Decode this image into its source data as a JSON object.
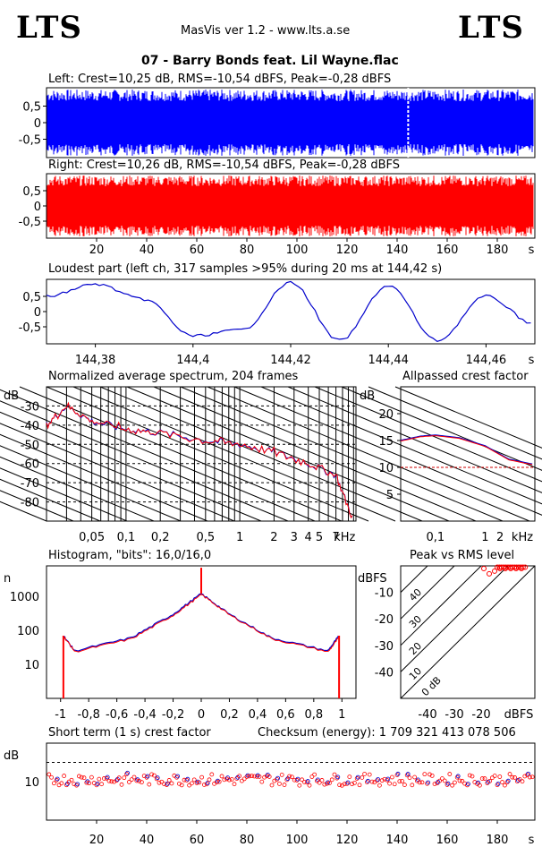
{
  "header": {
    "logo_left": "LTS",
    "logo_right": "LTS",
    "app_line": "MasVis ver 1.2 - www.lts.a.se",
    "track_title": "07 - Barry Bonds feat. Lil Wayne.flac"
  },
  "left_channel": {
    "title": "Left: Crest=10,25 dB, RMS=-10,54 dBFS, Peak=-0,28 dBFS",
    "color": "#0000ff",
    "y_ticks": [
      "0,5",
      "0",
      "-0,5"
    ],
    "marker_time_s": 144.42
  },
  "right_channel": {
    "title": "Right: Crest=10,26 dB, RMS=-10,54 dBFS, Peak=-0,28 dBFS",
    "color": "#ff0000",
    "y_ticks": [
      "0,5",
      "0",
      "-0,5"
    ],
    "x_ticks": [
      "20",
      "40",
      "60",
      "80",
      "100",
      "120",
      "140",
      "160",
      "180",
      "s"
    ]
  },
  "loudest": {
    "title": "Loudest part (left  ch, 317 samples >95% during 20 ms at 144,42 s)",
    "y_ticks": [
      "0,5",
      "0",
      "-0,5"
    ],
    "x_ticks": [
      "144,38",
      "144,4",
      "144,42",
      "144,44",
      "144,46",
      "s"
    ]
  },
  "spectrum": {
    "title": "Normalized average spectrum, 204 frames",
    "y_unit": "dB",
    "y_ticks": [
      "-30",
      "-40",
      "-50",
      "-60",
      "-70",
      "-80"
    ],
    "x_ticks": [
      "0,05",
      "0,1",
      "0,2",
      "0,5",
      "1",
      "2",
      "3",
      "4",
      "5",
      "7",
      "kHz"
    ]
  },
  "crest": {
    "title": "Allpassed crest factor",
    "y_unit": "dB",
    "y_ticks": [
      "20",
      "15",
      "10",
      "5"
    ],
    "x_ticks": [
      "0,1",
      "1",
      "2",
      "kHz"
    ]
  },
  "histogram": {
    "title": "Histogram, \"bits\": 16,0/16,0",
    "y_unit": "n",
    "y_ticks": [
      "1000",
      "100",
      "10"
    ],
    "x_ticks": [
      "-1",
      "-0,8",
      "-0,6",
      "-0,4",
      "-0,2",
      "0",
      "0,2",
      "0,4",
      "0,6",
      "0,8",
      "1"
    ]
  },
  "pvr": {
    "title": "Peak vs RMS level",
    "y_unit": "dBFS",
    "y_ticks": [
      "-10",
      "-20",
      "-30",
      "-40"
    ],
    "x_ticks": [
      "-40",
      "-30",
      "-20",
      "dBFS"
    ],
    "diag_labels": [
      "40",
      "30",
      "20",
      "10",
      "0 dB"
    ]
  },
  "short_crest": {
    "title": "Short term (1 s) crest factor",
    "checksum": "Checksum (energy):  1 709 321 413 078 506",
    "y_unit": "dB",
    "y_ticks": [
      "10"
    ],
    "x_ticks": [
      "20",
      "40",
      "60",
      "80",
      "100",
      "120",
      "140",
      "160",
      "180",
      "s"
    ]
  },
  "chart_data": [
    {
      "type": "area",
      "name": "left_waveform",
      "x_range": [
        0,
        195
      ],
      "ylim": [
        -1,
        1
      ],
      "amplitude_envelope": 0.95
    },
    {
      "type": "area",
      "name": "right_waveform",
      "x_range": [
        0,
        195
      ],
      "ylim": [
        -1,
        1
      ],
      "amplitude_envelope": 0.95
    },
    {
      "type": "line",
      "name": "loudest_part",
      "x": [
        144.37,
        144.38,
        144.39,
        144.4,
        144.41,
        144.42,
        144.43,
        144.44,
        144.45,
        144.46,
        144.47
      ],
      "values": [
        0.5,
        0.9,
        0.4,
        -0.8,
        -0.6,
        0.95,
        -0.95,
        0.85,
        -0.95,
        0.5,
        -0.4
      ],
      "ylim": [
        -1,
        1
      ]
    },
    {
      "type": "line",
      "name": "spectrum",
      "x_khz": [
        0.02,
        0.03,
        0.05,
        0.1,
        0.2,
        0.5,
        1,
        2,
        4,
        7,
        10
      ],
      "values": [
        -40,
        -30,
        -38,
        -42,
        -44,
        -48,
        -50,
        -54,
        -60,
        -66,
        -90
      ],
      "ylim": [
        -90,
        -20
      ]
    },
    {
      "type": "line",
      "name": "allpassed_crest",
      "x_khz": [
        0.02,
        0.05,
        0.1,
        0.3,
        1,
        3,
        10
      ],
      "values": [
        15,
        15.8,
        16,
        15.5,
        14,
        11.5,
        10.5
      ],
      "ylim": [
        0,
        25
      ]
    },
    {
      "type": "line",
      "name": "histogram",
      "x": [
        -0.98,
        -0.9,
        -0.5,
        -0.2,
        0,
        0.2,
        0.5,
        0.9,
        0.98
      ],
      "values": [
        70,
        25,
        60,
        300,
        1200,
        300,
        60,
        25,
        70
      ],
      "log_y": true
    },
    {
      "type": "scatter",
      "name": "peak_vs_rms",
      "points_x": [
        -19,
        -17,
        -15,
        -13,
        -11,
        -9,
        -7,
        -5
      ],
      "points_y": [
        -1,
        -3,
        -2,
        -1,
        -1,
        -1,
        -1,
        -1
      ]
    },
    {
      "type": "scatter",
      "name": "short_term_crest",
      "x_range": [
        0,
        195
      ],
      "mean_db": 10,
      "ylim": [
        0,
        20
      ]
    }
  ]
}
